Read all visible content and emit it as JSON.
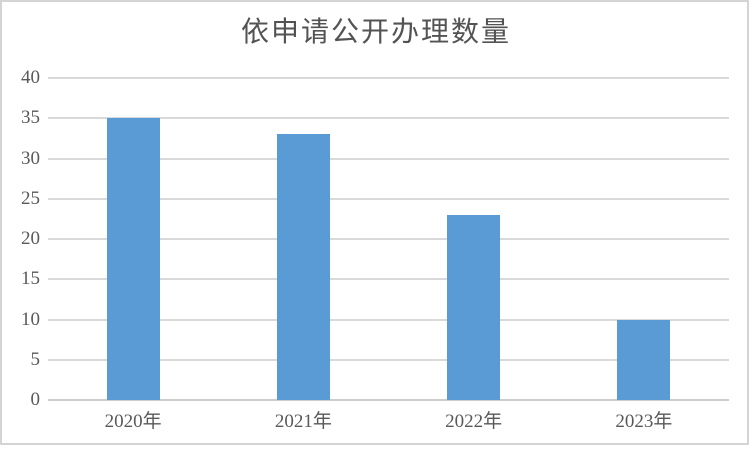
{
  "chart_data": {
    "type": "bar",
    "title": "依申请公开办理数量",
    "categories": [
      "2020年",
      "2021年",
      "2022年",
      "2023年"
    ],
    "values": [
      35,
      33,
      23,
      10
    ],
    "xlabel": "",
    "ylabel": "",
    "ylim": [
      0,
      40
    ],
    "ytick_step": 5,
    "yticks": [
      0,
      5,
      10,
      15,
      20,
      25,
      30,
      35,
      40
    ],
    "grid": "horizontal",
    "legend_position": "none",
    "colors": {
      "bar": "#5B9BD5",
      "gridline": "#D9D9D9",
      "axis_line": "#CCCCCC",
      "text": "#595959",
      "title_text": "#535353",
      "chart_border": "#D4D4D4",
      "background": "#FFFFFF"
    }
  }
}
